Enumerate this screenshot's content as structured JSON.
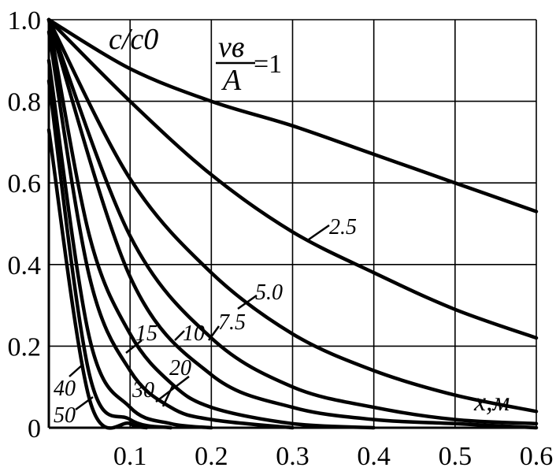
{
  "chart_data": {
    "type": "line",
    "ylabel": "c/c0",
    "xlabel": "x,м",
    "param_label": {
      "numerator": "vв",
      "denominator": "A",
      "value": "=1"
    },
    "xlim": [
      0,
      0.6
    ],
    "ylim": [
      0,
      1.0
    ],
    "grid": true,
    "x_ticks": [
      "0.1",
      "0.2",
      "0.3",
      "0.4",
      "0.5",
      "0.6"
    ],
    "y_ticks": [
      "0",
      "0.2",
      "0.4",
      "0.6",
      "0.8",
      "1.0"
    ],
    "series": [
      {
        "name": "1",
        "x": [
          0,
          0.1,
          0.2,
          0.3,
          0.4,
          0.5,
          0.6
        ],
        "y": [
          1.0,
          0.88,
          0.8,
          0.74,
          0.67,
          0.6,
          0.53
        ]
      },
      {
        "name": "2.5",
        "x": [
          0,
          0.1,
          0.2,
          0.3,
          0.4,
          0.5,
          0.6
        ],
        "y": [
          1.0,
          0.8,
          0.62,
          0.48,
          0.38,
          0.29,
          0.22
        ]
      },
      {
        "name": "5.0",
        "x": [
          0,
          0.1,
          0.2,
          0.3,
          0.4,
          0.5,
          0.6
        ],
        "y": [
          1.0,
          0.61,
          0.38,
          0.23,
          0.14,
          0.08,
          0.04
        ]
      },
      {
        "name": "7.5",
        "x": [
          0,
          0.1,
          0.2,
          0.3,
          0.4,
          0.5,
          0.6
        ],
        "y": [
          1.0,
          0.47,
          0.22,
          0.1,
          0.05,
          0.02,
          0.01
        ]
      },
      {
        "name": "10",
        "x": [
          0,
          0.1,
          0.2,
          0.3,
          0.4,
          0.5,
          0.6
        ],
        "y": [
          1.0,
          0.37,
          0.13,
          0.05,
          0.02,
          0.01,
          0.0
        ]
      },
      {
        "name": "15",
        "x": [
          0,
          0.05,
          0.1,
          0.15,
          0.2,
          0.3,
          0.4
        ],
        "y": [
          1.0,
          0.47,
          0.23,
          0.11,
          0.05,
          0.01,
          0.0
        ]
      },
      {
        "name": "20",
        "x": [
          0,
          0.05,
          0.1,
          0.15,
          0.2,
          0.3
        ],
        "y": [
          0.97,
          0.37,
          0.14,
          0.05,
          0.02,
          0.0
        ]
      },
      {
        "name": "30",
        "x": [
          0,
          0.05,
          0.1,
          0.15,
          0.2
        ],
        "y": [
          0.9,
          0.22,
          0.05,
          0.01,
          0.0
        ]
      },
      {
        "name": "40",
        "x": [
          0,
          0.05,
          0.1,
          0.15
        ],
        "y": [
          0.85,
          0.13,
          0.02,
          0.0
        ]
      },
      {
        "name": "50",
        "x": [
          0,
          0.05,
          0.1,
          0.12
        ],
        "y": [
          0.73,
          0.07,
          0.01,
          0.0
        ]
      }
    ],
    "curve_labels": [
      "2.5",
      "5.0",
      "7.5",
      "10",
      "15",
      "20",
      "30",
      "40",
      "50"
    ]
  }
}
